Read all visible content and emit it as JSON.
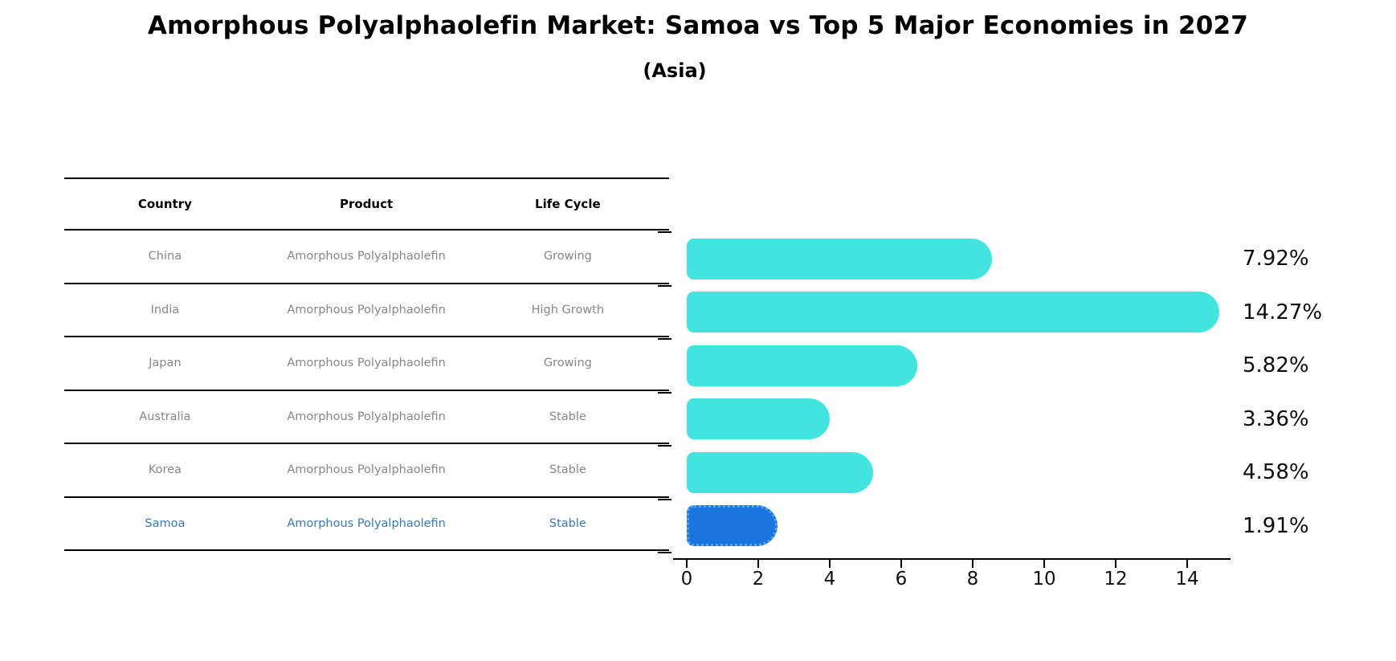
{
  "title": "Amorphous Polyalphaolefin Market: Samoa vs Top 5 Major Economies in 2027",
  "subtitle": "(Asia)",
  "table": {
    "headers": [
      "Country",
      "Product",
      "Life Cycle"
    ],
    "rows": [
      {
        "country": "China",
        "product": "Amorphous Polyalphaolefin",
        "life_cycle": "Growing",
        "highlight": false
      },
      {
        "country": "India",
        "product": "Amorphous Polyalphaolefin",
        "life_cycle": "High Growth",
        "highlight": false
      },
      {
        "country": "Japan",
        "product": "Amorphous Polyalphaolefin",
        "life_cycle": "Growing",
        "highlight": false
      },
      {
        "country": "Australia",
        "product": "Amorphous Polyalphaolefin",
        "life_cycle": "Stable",
        "highlight": false
      },
      {
        "country": "Korea",
        "product": "Amorphous Polyalphaolefin",
        "life_cycle": "Stable",
        "highlight": false
      },
      {
        "country": "Samoa",
        "product": "Amorphous Polyalphaolefin",
        "life_cycle": "Stable",
        "highlight": true
      }
    ]
  },
  "chart_data": {
    "type": "bar",
    "orientation": "horizontal",
    "categories": [
      "China",
      "India",
      "Japan",
      "Australia",
      "Korea",
      "Samoa"
    ],
    "values": [
      7.92,
      14.27,
      5.82,
      3.36,
      4.58,
      1.91
    ],
    "value_labels": [
      "7.92%",
      "14.27%",
      "5.82%",
      "3.36%",
      "4.58%",
      "1.91%"
    ],
    "xticks": [
      0,
      2,
      4,
      6,
      8,
      10,
      12,
      14
    ],
    "xlim": [
      0,
      15.25
    ],
    "grid": false,
    "legend": false,
    "highlight_index": 5,
    "title": "Amorphous Polyalphaolefin Market: Samoa vs Top 5 Major Economies in 2027",
    "subtitle": "(Asia)"
  },
  "colors": {
    "bar": "#42E4DE",
    "highlight_bar": "#1B75E0",
    "highlight_bar_border": "#56A4EE",
    "highlight_text": "#3579BE",
    "table_text": "#878787",
    "axis": "#000000"
  }
}
